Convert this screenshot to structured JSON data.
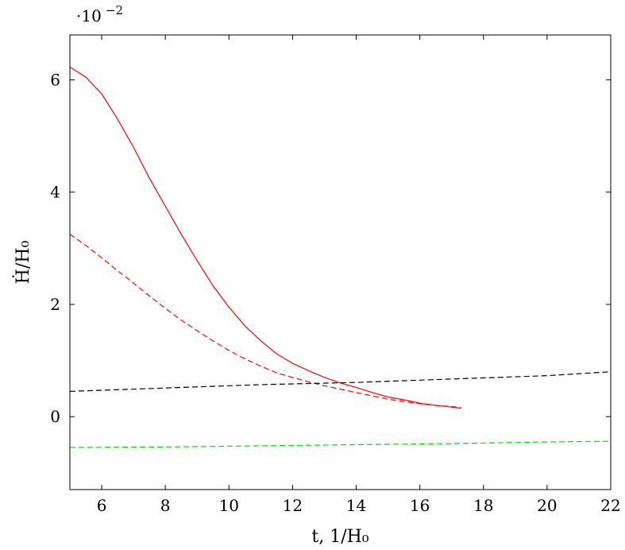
{
  "chart_data": {
    "type": "line",
    "xlabel": "t, 1/H₀",
    "ylabel": "Ḣ/H₀",
    "y_scale_label": {
      "base": "·10",
      "exponent": "−2"
    },
    "xlim": [
      5,
      22
    ],
    "ylim": [
      -1.3,
      6.8
    ],
    "x_ticks": [
      6,
      8,
      10,
      12,
      14,
      16,
      18,
      20,
      22
    ],
    "x_tick_labels": [
      "6",
      "8",
      "10",
      "12",
      "14",
      "16",
      "18",
      "20",
      "22"
    ],
    "y_ticks": [
      0,
      2,
      4,
      6
    ],
    "y_tick_labels": [
      "0",
      "2",
      "4",
      "6"
    ],
    "grid": false,
    "series": [
      {
        "color": "#ff0000",
        "style": "solid",
        "x": [
          5,
          5.5,
          6,
          6.5,
          7,
          7.5,
          8,
          8.5,
          9,
          9.5,
          10,
          10.5,
          11,
          11.5,
          12,
          12.5,
          13,
          13.5,
          14,
          14.5,
          15,
          15.5,
          16,
          16.5,
          17,
          17.3
        ],
        "y": [
          6.23,
          6.05,
          5.75,
          5.3,
          4.8,
          4.25,
          3.75,
          3.25,
          2.78,
          2.33,
          1.95,
          1.62,
          1.35,
          1.12,
          0.95,
          0.82,
          0.7,
          0.6,
          0.52,
          0.43,
          0.35,
          0.3,
          0.24,
          0.2,
          0.17,
          0.15
        ]
      },
      {
        "color": "#ff0000",
        "style": "dashed",
        "x": [
          5,
          5.5,
          6,
          6.5,
          7,
          7.5,
          8,
          8.5,
          9,
          9.5,
          10,
          10.5,
          11,
          11.5,
          12,
          12.5,
          13,
          13.5,
          14,
          14.5,
          15,
          15.5,
          16,
          16.5,
          17,
          17.3
        ],
        "y": [
          3.25,
          3.05,
          2.83,
          2.6,
          2.38,
          2.15,
          1.93,
          1.72,
          1.53,
          1.35,
          1.18,
          1.03,
          0.9,
          0.78,
          0.7,
          0.62,
          0.55,
          0.49,
          0.43,
          0.37,
          0.31,
          0.27,
          0.23,
          0.2,
          0.18,
          0.16
        ]
      },
      {
        "color": "#000000",
        "style": "dashed",
        "x": [
          5,
          8,
          11,
          14,
          17,
          20,
          22
        ],
        "y": [
          0.45,
          0.51,
          0.57,
          0.61,
          0.67,
          0.73,
          0.8
        ]
      },
      {
        "color": "#00e000",
        "style": "dashed",
        "x": [
          5,
          8,
          11,
          14,
          17,
          20,
          22
        ],
        "y": [
          -0.55,
          -0.54,
          -0.52,
          -0.5,
          -0.48,
          -0.45,
          -0.44
        ]
      }
    ]
  }
}
